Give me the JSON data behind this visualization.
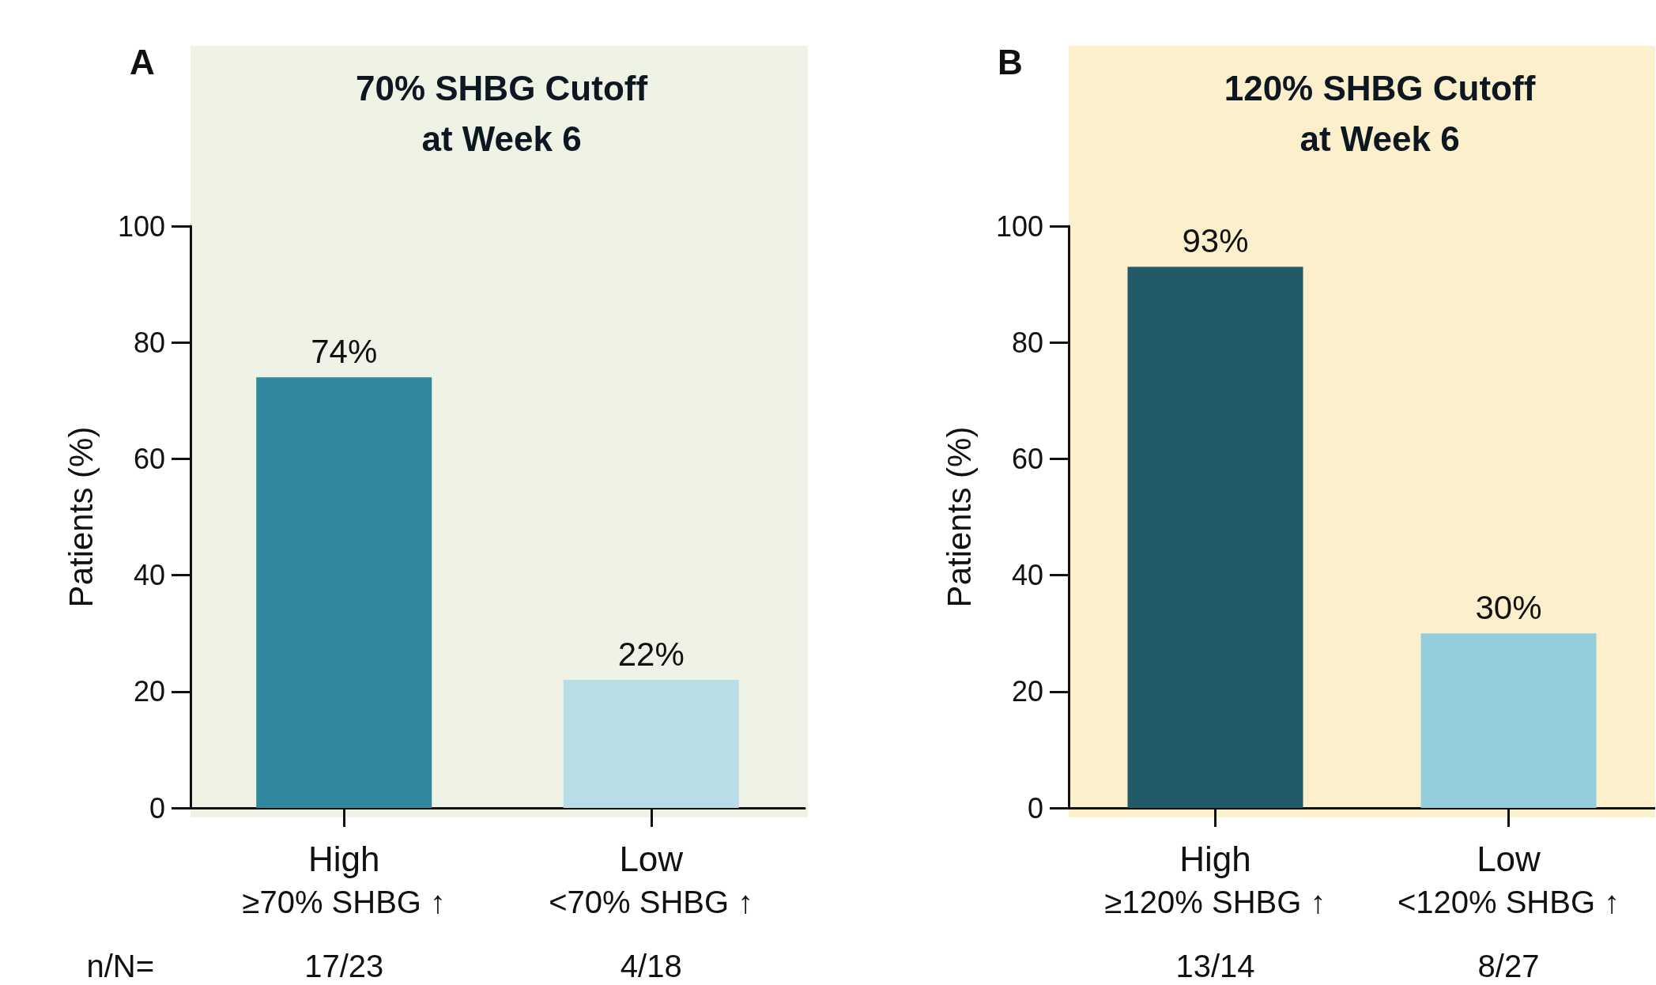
{
  "chart_data": [
    {
      "type": "bar",
      "title": "70% SHBG Cutoff\nat Week 6",
      "ylabel": "Patients (%)",
      "categories": [
        "High\n≥70% SHBG ↑",
        "Low\n<70% SHBG ↑"
      ],
      "values": [
        74,
        22
      ],
      "colors": [
        "#32889f",
        "#b8dde6"
      ],
      "value_labels": [
        "74%",
        "22%"
      ],
      "ylim": [
        0,
        100
      ],
      "yticks": [
        0,
        20,
        40,
        60,
        80,
        100
      ],
      "grid": false,
      "annotations": [
        "A",
        "n/N=",
        "17/23",
        "4/18"
      ]
    },
    {
      "type": "bar",
      "title": "120% SHBG Cutoff\nat Week 6",
      "ylabel": "Patients (%)",
      "categories": [
        "High\n≥120% SHBG ↑",
        "Low\n<120% SHBG ↑"
      ],
      "values": [
        93,
        30
      ],
      "colors": [
        "#225a68",
        "#94cddb"
      ],
      "value_labels": [
        "93%",
        "30%"
      ],
      "ylim": [
        0,
        100
      ],
      "yticks": [
        0,
        20,
        40,
        60,
        80,
        100
      ],
      "grid": false,
      "annotations": [
        "B",
        "13/14",
        "8/27"
      ]
    }
  ]
}
